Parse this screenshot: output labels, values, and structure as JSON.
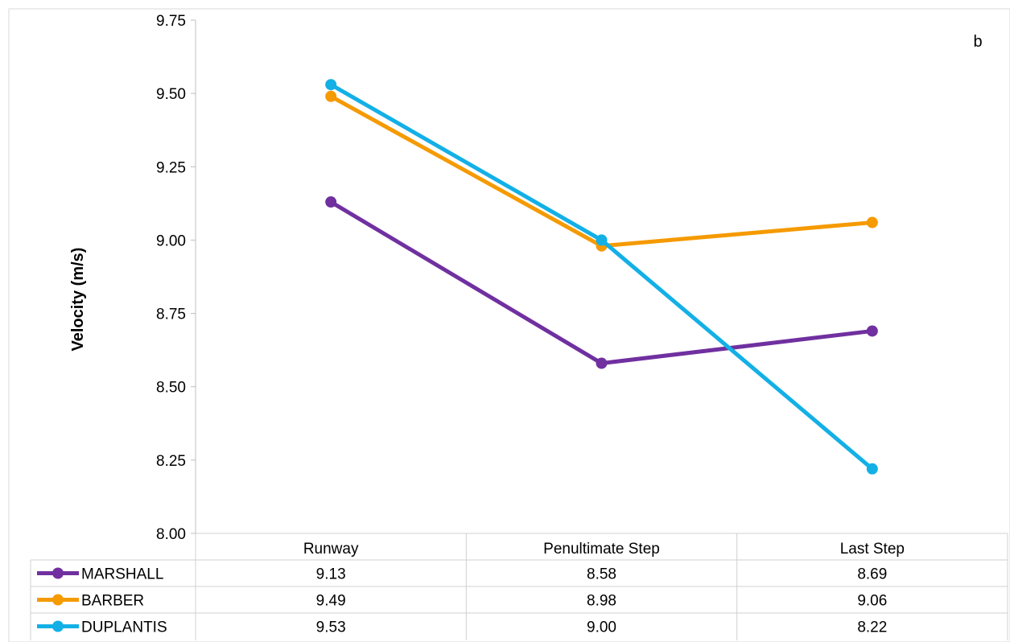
{
  "chart_data": {
    "type": "line",
    "panel_label": "b",
    "ylabel": "Velocity (m/s)",
    "xlabel": "",
    "categories": [
      "Runway",
      "Penultimate Step",
      "Last Step"
    ],
    "ylim": [
      8.0,
      9.75
    ],
    "yticks": [
      "8.00",
      "8.25",
      "8.50",
      "8.75",
      "9.00",
      "9.25",
      "9.50",
      "9.75"
    ],
    "grid": false,
    "legend": "data-table-below",
    "series": [
      {
        "name": "MARSHALL",
        "color": "#7030A0",
        "values": [
          9.13,
          8.58,
          8.69
        ],
        "labels": [
          "9.13",
          "8.58",
          "8.69"
        ]
      },
      {
        "name": "BARBER",
        "color": "#F59A00",
        "values": [
          9.49,
          8.98,
          9.06
        ],
        "labels": [
          "9.49",
          "8.98",
          "9.06"
        ]
      },
      {
        "name": "DUPLANTIS",
        "color": "#13B0E6",
        "values": [
          9.53,
          9.0,
          8.22
        ],
        "labels": [
          "9.53",
          "9.00",
          "8.22"
        ]
      }
    ]
  }
}
